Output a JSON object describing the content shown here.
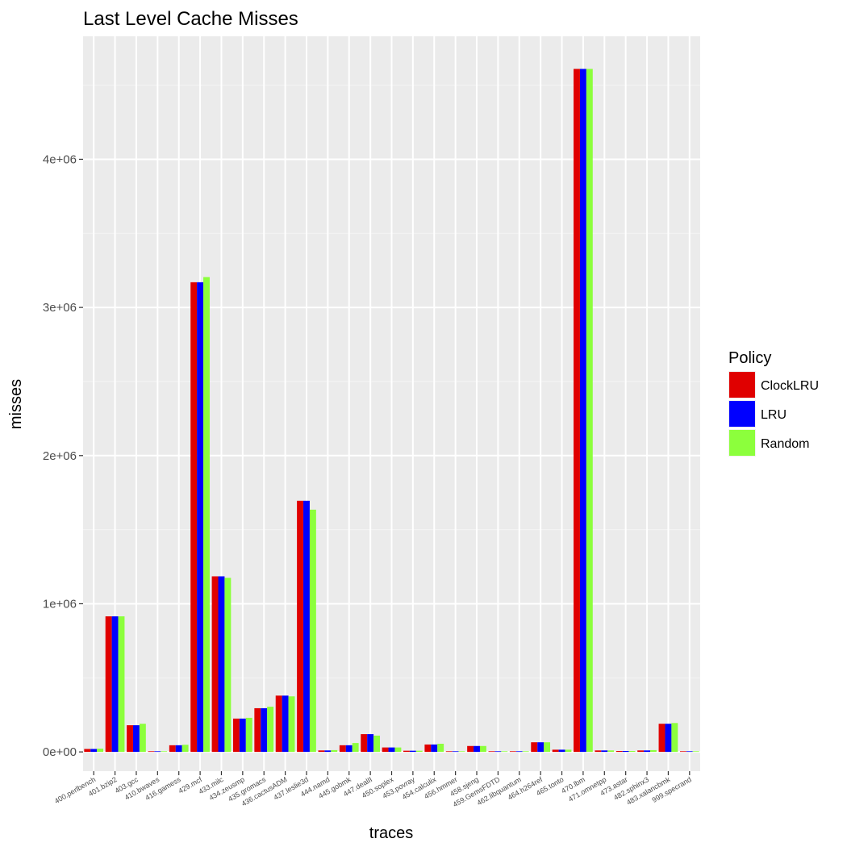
{
  "chart_data": {
    "type": "bar",
    "title": "Last Level Cache Misses",
    "xlabel": "traces",
    "ylabel": "misses",
    "ylim": [
      -130000,
      4830000
    ],
    "yticks": [
      0,
      1000000,
      2000000,
      3000000,
      4000000
    ],
    "ytick_labels": [
      "0e+00",
      "1e+06",
      "2e+06",
      "3e+06",
      "4e+06"
    ],
    "grid": true,
    "legend": {
      "title": "Policy",
      "position": "right"
    },
    "categories": [
      "400.perlbench",
      "401.bzip2",
      "403.gcc",
      "410.bwaves",
      "416.gamess",
      "429.mcf",
      "433.milc",
      "434.zeusmp",
      "435.gromacs",
      "436.cactusADM",
      "437.leslie3d",
      "444.namd",
      "445.gobmk",
      "447.dealII",
      "450.soplex",
      "453.povray",
      "454.calculix",
      "456.hmmer",
      "458.sjeng",
      "459.GemsFDTD",
      "462.libquantum",
      "464.h264ref",
      "465.tonto",
      "470.lbm",
      "471.omnetpp",
      "473.astar",
      "482.sphinx3",
      "483.xalancbmk",
      "999.specrand"
    ],
    "series": [
      {
        "name": "ClockLRU",
        "color": "#e00000",
        "values": [
          20000,
          915000,
          180000,
          2000,
          45000,
          3170000,
          1185000,
          225000,
          295000,
          380000,
          1695000,
          10000,
          45000,
          120000,
          30000,
          8000,
          50000,
          3000,
          40000,
          1000,
          1000,
          65000,
          15000,
          4610000,
          10000,
          6000,
          10000,
          190000,
          2000
        ]
      },
      {
        "name": "LRU",
        "color": "#0000ff",
        "values": [
          20000,
          915000,
          180000,
          2000,
          45000,
          3170000,
          1185000,
          225000,
          295000,
          380000,
          1695000,
          10000,
          45000,
          120000,
          30000,
          8000,
          50000,
          3000,
          40000,
          1000,
          1000,
          65000,
          15000,
          4610000,
          10000,
          6000,
          10000,
          190000,
          2000
        ]
      },
      {
        "name": "Random",
        "color": "#8cff3c",
        "values": [
          22000,
          915000,
          190000,
          2000,
          48000,
          3205000,
          1175000,
          230000,
          305000,
          375000,
          1635000,
          12000,
          60000,
          110000,
          30000,
          8000,
          55000,
          3000,
          40000,
          1000,
          1000,
          65000,
          15000,
          4610000,
          10000,
          6000,
          12000,
          195000,
          2000
        ]
      }
    ]
  }
}
